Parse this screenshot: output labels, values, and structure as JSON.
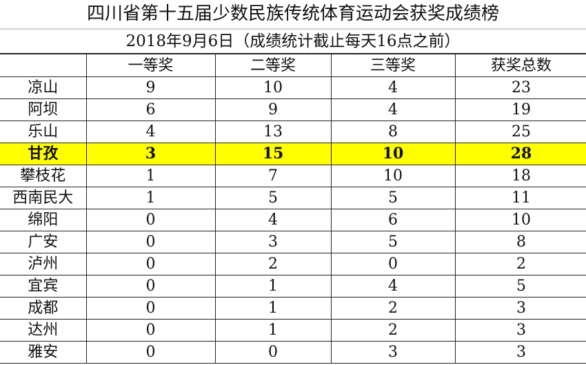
{
  "title": "四川省第十五届少数民族传统体育运动会获奖成绩榜",
  "subtitle": "2018年9月6日（成绩统计截止每天16点之前）",
  "highlight_color": "#ffff00",
  "columns": [
    "",
    "一等奖",
    "二等奖",
    "三等奖",
    "获奖总数"
  ],
  "rows": [
    {
      "team": "凉山",
      "first": "9",
      "second": "10",
      "third": "4",
      "total": "23"
    },
    {
      "team": "阿坝",
      "first": "6",
      "second": "9",
      "third": "4",
      "total": "19"
    },
    {
      "team": "乐山",
      "first": "4",
      "second": "13",
      "third": "8",
      "total": "25"
    },
    {
      "team": "甘孜",
      "first": "3",
      "second": "15",
      "third": "10",
      "total": "28",
      "highlighted": true
    },
    {
      "team": "攀枝花",
      "first": "1",
      "second": "7",
      "third": "10",
      "total": "18"
    },
    {
      "team": "西南民大",
      "first": "1",
      "second": "5",
      "third": "5",
      "total": "11"
    },
    {
      "team": "绵阳",
      "first": "0",
      "second": "4",
      "third": "6",
      "total": "10"
    },
    {
      "team": "广安",
      "first": "0",
      "second": "3",
      "third": "5",
      "total": "8"
    },
    {
      "team": "泸州",
      "first": "0",
      "second": "2",
      "third": "0",
      "total": "2"
    },
    {
      "team": "宜宾",
      "first": "0",
      "second": "1",
      "third": "4",
      "total": "5"
    },
    {
      "team": "成都",
      "first": "0",
      "second": "1",
      "third": "2",
      "total": "3"
    },
    {
      "team": "达州",
      "first": "0",
      "second": "1",
      "third": "2",
      "total": "3"
    },
    {
      "team": "雅安",
      "first": "0",
      "second": "0",
      "third": "3",
      "total": "3"
    }
  ]
}
